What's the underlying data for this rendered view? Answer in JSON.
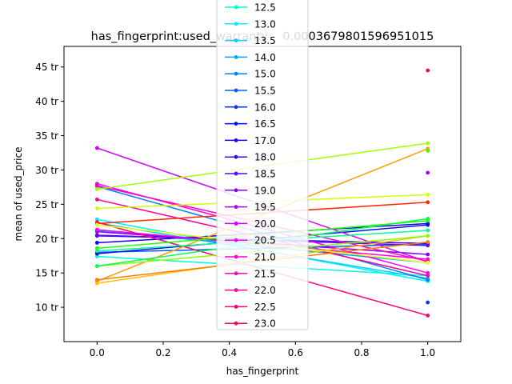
{
  "chart_data": {
    "type": "line",
    "title": "has_fingerprint:used_warranty    0.0003679801596951015",
    "xlabel": "has_fingerprint",
    "ylabel": "mean of used_price",
    "xlim": [
      -0.1,
      1.1
    ],
    "ylim": [
      5.0,
      48.0
    ],
    "x_ticks": [
      "0.0",
      "0.2",
      "0.4",
      "0.6",
      "0.8",
      "1.0"
    ],
    "y_ticks": [
      "10 tr",
      "15 tr",
      "20 tr",
      "25 tr",
      "30 tr",
      "35 tr",
      "40 tr",
      "45 tr"
    ],
    "grid": false,
    "legend_location": "upper center",
    "x": [
      0,
      1
    ],
    "series": [
      {
        "name": "12.5",
        "color": "#00ffd2",
        "values": [
          17.4,
          14.6
        ]
      },
      {
        "name": "13.0",
        "color": "#00f0ff",
        "values": [
          22.8,
          13.8
        ]
      },
      {
        "name": "13.5",
        "color": "#00cbff",
        "values": [
          22.3,
          14.2
        ]
      },
      {
        "name": "14.0",
        "color": "#00a5ff",
        "values": [
          21.2,
          16.5
        ]
      },
      {
        "name": "15.0",
        "color": "#0080ff",
        "values": [
          27.6,
          14.0
        ]
      },
      {
        "name": "15.5",
        "color": "#005bff",
        "values": [
          18.0,
          19.2
        ]
      },
      {
        "name": "16.0",
        "color": "#0036ff",
        "values": [
          null,
          10.7
        ]
      },
      {
        "name": "16.5",
        "color": "#0010ff",
        "values": [
          17.8,
          22.0
        ]
      },
      {
        "name": "17.0",
        "color": "#1500ff",
        "values": [
          19.4,
          22.2
        ]
      },
      {
        "name": "18.0",
        "color": "#3a00ff",
        "values": [
          20.4,
          19.3
        ]
      },
      {
        "name": "18.5",
        "color": "#6000ff",
        "values": [
          20.5,
          19.0
        ]
      },
      {
        "name": "19.0",
        "color": "#8500ff",
        "values": [
          21.0,
          17.7
        ]
      },
      {
        "name": "19.5",
        "color": "#aa00ff",
        "values": [
          null,
          29.6
        ]
      },
      {
        "name": "20.0",
        "color": "#d000ff",
        "values": [
          33.2,
          16.6
        ]
      },
      {
        "name": "20.5",
        "color": "#f500ff",
        "values": [
          28.0,
          15.0
        ]
      },
      {
        "name": "21.0",
        "color": "#ff00e5",
        "values": [
          21.3,
          17.0
        ]
      },
      {
        "name": "21.5",
        "color": "#ff00bf",
        "values": [
          27.7,
          16.7
        ]
      },
      {
        "name": "22.0",
        "color": "#ff009a",
        "values": [
          25.7,
          14.6
        ]
      },
      {
        "name": "22.5",
        "color": "#ff0075",
        "values": [
          22.4,
          8.8
        ]
      },
      {
        "name": "23.0",
        "color": "#ff0050",
        "values": [
          null,
          44.5
        ]
      }
    ],
    "extra_series": [
      {
        "color": "#ff2a00",
        "values": [
          22.2,
          25.3
        ]
      },
      {
        "color": "#ff9d00",
        "values": [
          13.8,
          33.1
        ]
      },
      {
        "color": "#ffbb00",
        "values": [
          13.5,
          20.4
        ]
      },
      {
        "color": "#ff7a00",
        "values": [
          14.0,
          19.5
        ]
      },
      {
        "color": "#d0ff00",
        "values": [
          24.4,
          26.4
        ]
      },
      {
        "color": "#f0ff00",
        "values": [
          22.0,
          16.5
        ]
      },
      {
        "color": "#a5ff00",
        "values": [
          27.2,
          33.9
        ]
      },
      {
        "color": "#8aff00",
        "values": [
          16.0,
          20.4
        ]
      },
      {
        "color": "#00ff50",
        "values": [
          16.0,
          22.9
        ]
      },
      {
        "color": "#20ff00",
        "values": [
          18.6,
          22.6
        ]
      },
      {
        "color": "#00ff90",
        "values": [
          18.2,
          21.2
        ]
      },
      {
        "color": "#40ff00",
        "values": [
          null,
          32.8
        ]
      }
    ]
  }
}
